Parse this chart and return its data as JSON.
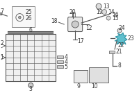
{
  "title": "",
  "bg_color": "#ffffff",
  "highlight_color": "#4db8c8",
  "line_color": "#555555",
  "text_color": "#333333",
  "figsize": [
    2.0,
    1.47
  ],
  "dpi": 100,
  "box_color": "#dddddd",
  "box_outline": "#888888"
}
